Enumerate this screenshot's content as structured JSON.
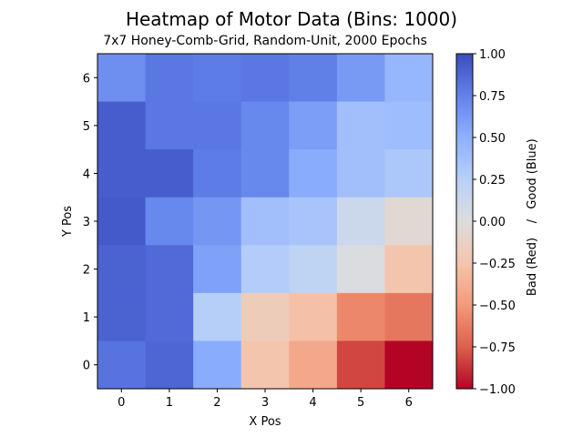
{
  "chart_data": {
    "type": "heatmap",
    "title": "Heatmap of Motor Data (Bins: 1000)",
    "subtitle": "7x7 Honey-Comb-Grid, Random-Unit, 2000 Epochs",
    "xlabel": "X Pos",
    "ylabel": "Y Pos",
    "x_ticks": [
      0,
      1,
      2,
      3,
      4,
      5,
      6
    ],
    "y_ticks": [
      0,
      1,
      2,
      3,
      4,
      5,
      6
    ],
    "colorbar": {
      "label_bad": "Bad (Red)",
      "separator": "/",
      "label_good": "Good (Blue)",
      "range": [
        -1.0,
        1.0
      ],
      "ticks": [
        "1.00",
        "0.75",
        "0.50",
        "0.25",
        "0.00",
        "−0.25",
        "−0.50",
        "−0.75",
        "−1.00"
      ],
      "colormap": "coolwarm (reversed: red = -1, blue = +1)"
    },
    "rows_order": "y from 6 (top) to 0 (bottom); each row lists x = 0..6",
    "values": [
      [
        0.68,
        0.8,
        0.78,
        0.8,
        0.76,
        0.62,
        0.45
      ],
      [
        0.92,
        0.8,
        0.8,
        0.72,
        0.6,
        0.38,
        0.4
      ],
      [
        0.92,
        0.92,
        0.78,
        0.72,
        0.52,
        0.38,
        0.32
      ],
      [
        0.94,
        0.72,
        0.64,
        0.38,
        0.34,
        0.12,
        -0.05
      ],
      [
        0.9,
        0.86,
        0.58,
        0.28,
        0.2,
        0.02,
        -0.25
      ],
      [
        0.9,
        0.86,
        0.26,
        -0.18,
        -0.28,
        -0.58,
        -0.65
      ],
      [
        0.82,
        0.88,
        0.52,
        -0.25,
        -0.42,
        -0.82,
        -1.0
      ]
    ]
  }
}
